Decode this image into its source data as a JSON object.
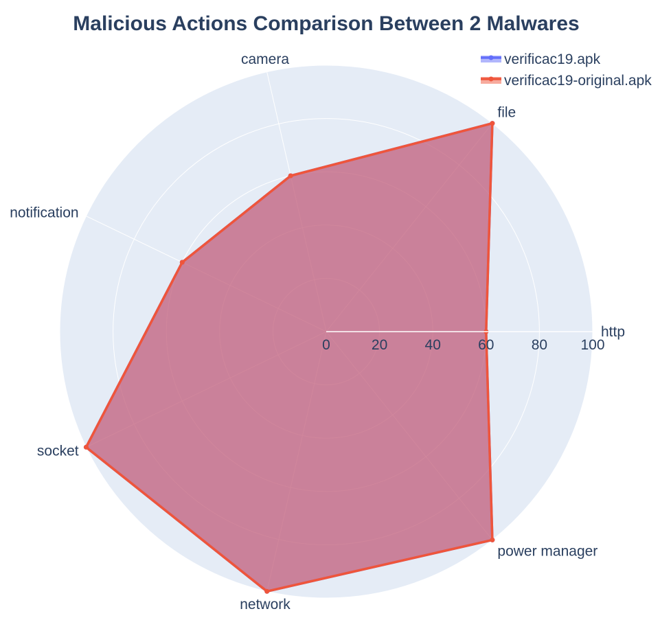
{
  "chart_data": {
    "type": "radar",
    "title": "Malicious Actions Comparison Between 2 Malwares",
    "categories": [
      "http",
      "file",
      "camera",
      "notification",
      "socket",
      "network",
      "power manager"
    ],
    "series": [
      {
        "name": "verificac19.apk",
        "values": [
          60,
          100,
          60,
          60,
          100,
          100,
          100
        ],
        "color": "#636efa"
      },
      {
        "name": "verificac19-original.apk",
        "values": [
          60,
          100,
          60,
          60,
          100,
          100,
          100
        ],
        "color": "#ef553b"
      }
    ],
    "radial_range": [
      0,
      100
    ],
    "radial_ticks": [
      "0",
      "20",
      "40",
      "60",
      "80",
      "100"
    ],
    "grid": true,
    "legend_position": "top-right",
    "colors": {
      "polar_background": "#e5ecf6",
      "grid_line": "#ffffff",
      "text": "#2a3f5f",
      "overlap_fill": "#c97e98"
    }
  }
}
